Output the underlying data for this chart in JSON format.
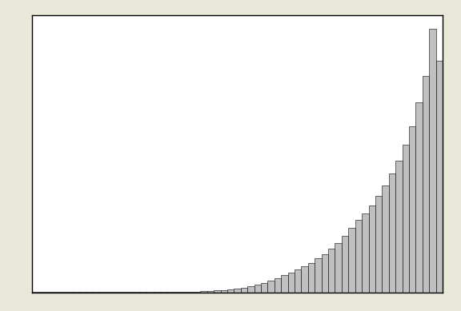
{
  "bar_heights": [
    0.05,
    0.05,
    0.05,
    0.05,
    0.05,
    0.05,
    0.05,
    0.05,
    0.05,
    0.05,
    0.05,
    0.05,
    0.05,
    0.05,
    0.05,
    0.05,
    0.05,
    0.05,
    0.05,
    0.05,
    0.1,
    0.1,
    0.15,
    0.2,
    0.3,
    0.4,
    0.5,
    0.7,
    0.9,
    1.1,
    1.4,
    1.8,
    2.3,
    2.9,
    3.6,
    4.4,
    5.4,
    6.6,
    7.5,
    8.6,
    9.8,
    11.2,
    12.8,
    14.6,
    16.5,
    18.8,
    21.5,
    24.5,
    27.5,
    30.0,
    33.0,
    36.5,
    40.5,
    45.0,
    50.0,
    56.0,
    63.0,
    72.0,
    82.0,
    100.0,
    88.0
  ],
  "bar_color": "#c0c0c0",
  "bar_edge_color": "#000000",
  "bar_edge_width": 0.4,
  "background_color": "#ffffff",
  "outer_background": "#eae8d8",
  "ylim": [
    0,
    105
  ],
  "figsize": [
    5.76,
    3.89
  ],
  "dpi": 100
}
